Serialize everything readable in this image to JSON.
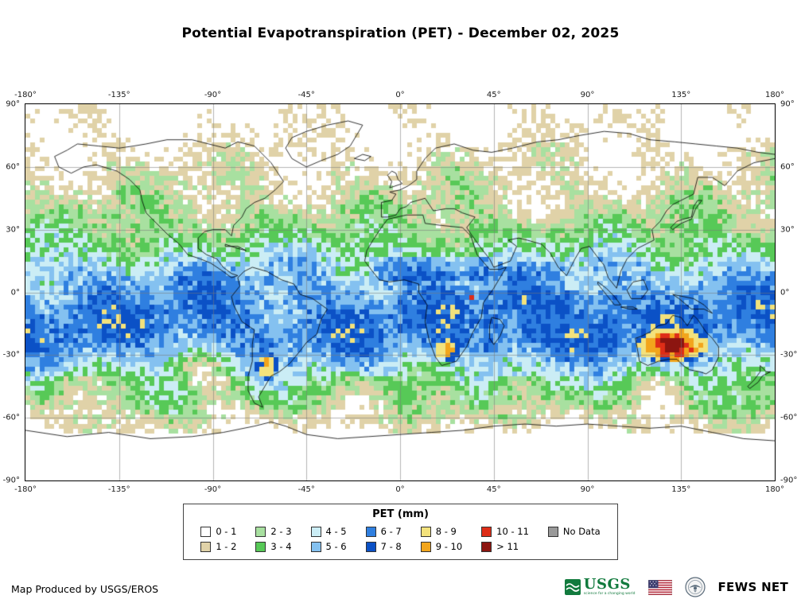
{
  "title": "Potential Evapotranspiration (PET) - December 02, 2025",
  "map": {
    "lon_ticks": [
      "-180°",
      "-135°",
      "-90°",
      "-45°",
      "0°",
      "45°",
      "90°",
      "135°",
      "180°"
    ],
    "lat_ticks": [
      "90°",
      "60°",
      "30°",
      "0°",
      "-30°",
      "-60°",
      "-90°"
    ]
  },
  "legend": {
    "title": "PET (mm)",
    "entries": [
      {
        "label": "0 - 1",
        "color": "#FFFFFF"
      },
      {
        "label": "1 - 2",
        "color": "#E0D2A8"
      },
      {
        "label": "2 - 3",
        "color": "#A8E0A0"
      },
      {
        "label": "3 - 4",
        "color": "#57C957"
      },
      {
        "label": "4 - 5",
        "color": "#CBEDF5"
      },
      {
        "label": "5 - 6",
        "color": "#84C1F0"
      },
      {
        "label": "6 - 7",
        "color": "#2F7FE0"
      },
      {
        "label": "7 - 8",
        "color": "#0B51C6"
      },
      {
        "label": "8 - 9",
        "color": "#F3E27C"
      },
      {
        "label": "9 - 10",
        "color": "#F2A51C"
      },
      {
        "label": "10 - 11",
        "color": "#DE2D17"
      },
      {
        "label": "> 11",
        "color": "#8C1510"
      },
      {
        "label": "No Data",
        "color": "#999999"
      }
    ]
  },
  "footer": {
    "credit": "Map Produced by USGS/EROS",
    "usgs_label": "USGS",
    "usgs_tagline": "science for a changing world",
    "fewsnet_label": "FEWS NET"
  }
}
